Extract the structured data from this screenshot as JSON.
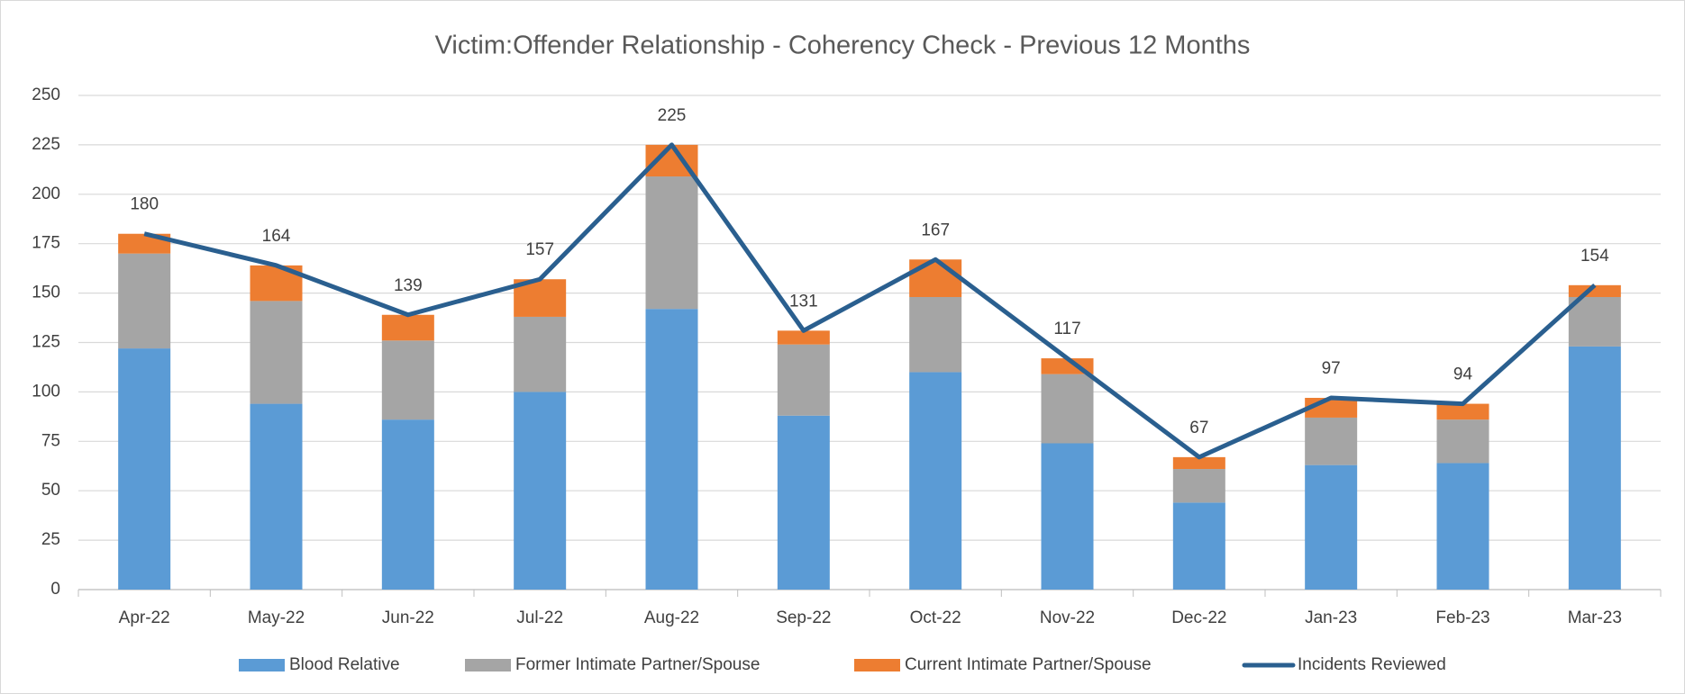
{
  "chart_data": {
    "type": "stacked-bar-line",
    "title": "Victim:Offender Relationship - Coherency Check - Previous 12 Months",
    "categories": [
      "Apr-22",
      "May-22",
      "Jun-22",
      "Jul-22",
      "Aug-22",
      "Sep-22",
      "Oct-22",
      "Nov-22",
      "Dec-22",
      "Jan-23",
      "Feb-23",
      "Mar-23"
    ],
    "series": [
      {
        "name": "Blood Relative",
        "color": "#5b9bd5",
        "type": "bar",
        "values": [
          122,
          94,
          86,
          100,
          142,
          88,
          110,
          74,
          44,
          63,
          64,
          123
        ]
      },
      {
        "name": "Former Intimate Partner/Spouse",
        "color": "#a5a5a5",
        "type": "bar",
        "values": [
          48,
          52,
          40,
          38,
          67,
          36,
          38,
          35,
          17,
          24,
          22,
          25
        ]
      },
      {
        "name": "Current Intimate Partner/Spouse",
        "color": "#ed7d31",
        "type": "bar",
        "values": [
          10,
          18,
          13,
          19,
          16,
          7,
          19,
          8,
          6,
          10,
          8,
          6
        ]
      },
      {
        "name": "Incidents Reviewed",
        "color": "#2a5f8f",
        "type": "line",
        "values": [
          180,
          164,
          139,
          157,
          225,
          131,
          167,
          117,
          67,
          97,
          94,
          154
        ]
      }
    ],
    "ylim": [
      0,
      250
    ],
    "yticks": [
      0,
      25,
      50,
      75,
      100,
      125,
      150,
      175,
      200,
      225,
      250
    ],
    "grid": true,
    "legend": "bottom"
  }
}
